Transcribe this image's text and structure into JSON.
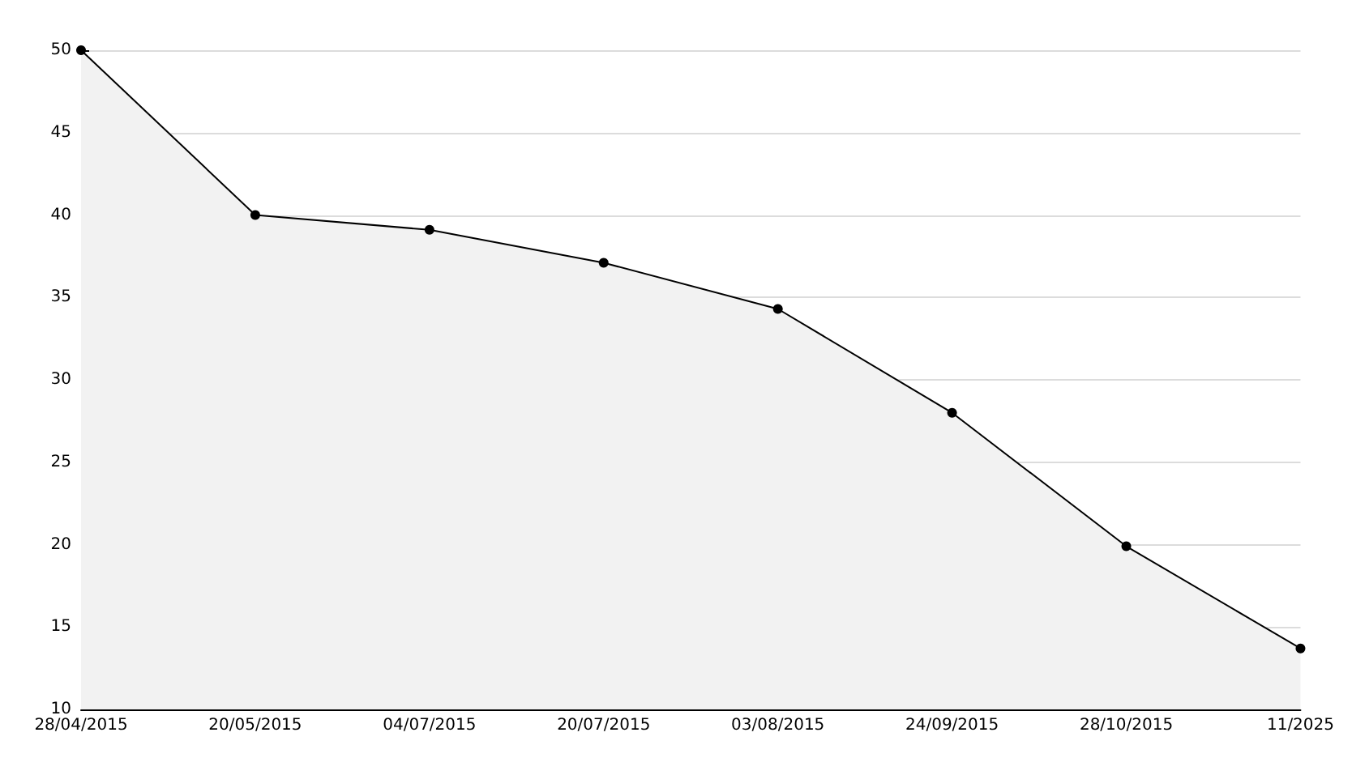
{
  "chart_data": {
    "type": "area",
    "categories": [
      "28/04/2015",
      "20/05/2015",
      "04/07/2015",
      "20/07/2015",
      "03/08/2015",
      "24/09/2015",
      "28/10/2015",
      "11/2025"
    ],
    "series": [
      {
        "color": "#000000",
        "values": [
          50,
          40,
          39.1,
          37.1,
          34.3,
          28,
          19.9,
          13.7
        ]
      }
    ],
    "ylim": [
      10,
      50
    ],
    "yticks": [
      10,
      15,
      20,
      25,
      30,
      35,
      40,
      45,
      50
    ],
    "grid": "y",
    "marker": "circle",
    "line_style": "solid"
  }
}
